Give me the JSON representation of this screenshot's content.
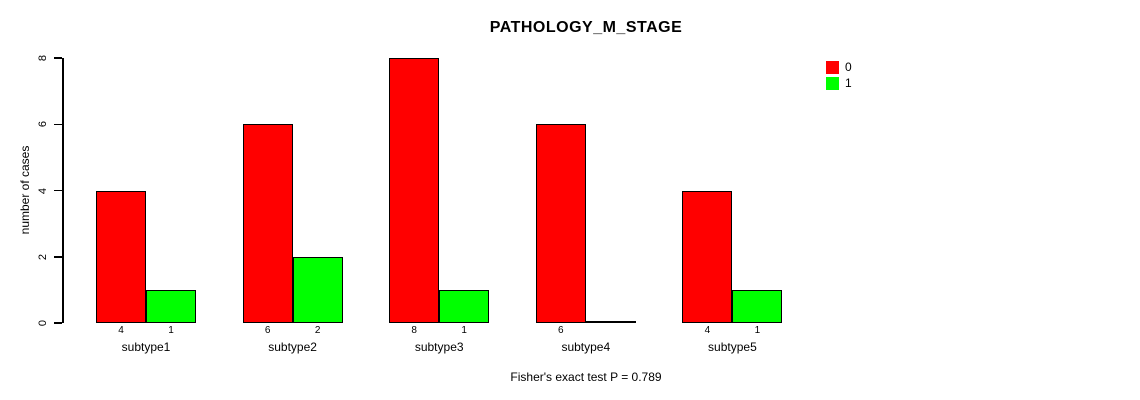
{
  "chart_data": {
    "type": "bar",
    "title": "PATHOLOGY_M_STAGE",
    "ylabel": "number of cases",
    "xlabel": "",
    "categories": [
      "subtype1",
      "subtype2",
      "subtype3",
      "subtype4",
      "subtype5"
    ],
    "series": [
      {
        "name": "0",
        "color": "#ff0000",
        "values": [
          4,
          6,
          8,
          6,
          4
        ]
      },
      {
        "name": "1",
        "color": "#00ff00",
        "values": [
          1,
          2,
          1,
          0,
          1
        ]
      }
    ],
    "bar_count_labels": [
      [
        "4",
        "6",
        "8",
        "6",
        "4"
      ],
      [
        "1",
        "2",
        "1",
        "",
        "1"
      ]
    ],
    "yticks": [
      0,
      2,
      4,
      6,
      8
    ],
    "ylim": [
      0,
      8
    ],
    "grid": false,
    "legend_position": "top-right",
    "footer": "Fisher's exact test P = 0.789"
  }
}
